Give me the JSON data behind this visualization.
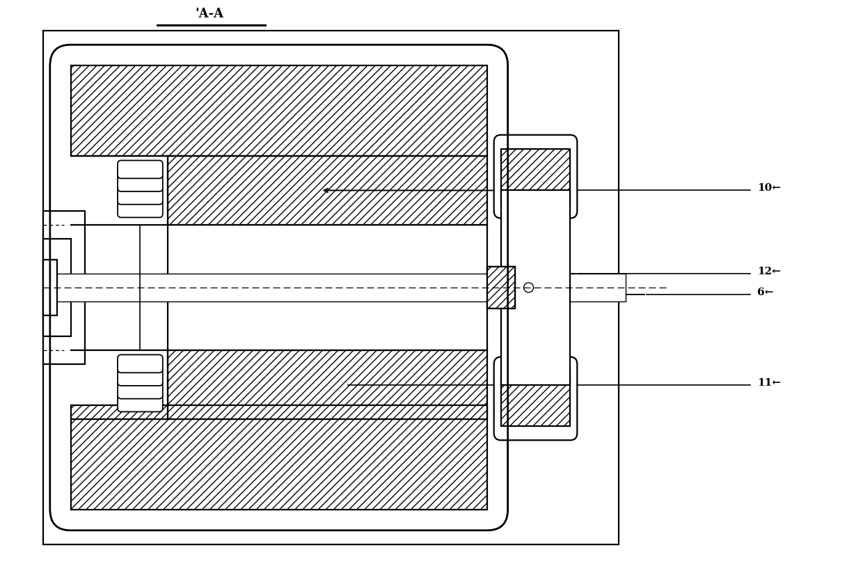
{
  "title": "'A-A",
  "bg_color": "#ffffff",
  "figsize": [
    12.4,
    8.23
  ],
  "dpi": 100,
  "labels": {
    "10": "10←",
    "12": "12←",
    "6": "6←",
    "11": "11←"
  }
}
